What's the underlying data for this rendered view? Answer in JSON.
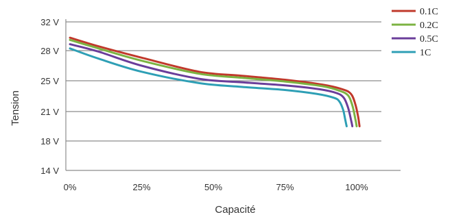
{
  "chart_data": {
    "type": "line",
    "title": "",
    "xlabel": "Capacité",
    "ylabel": "Tension",
    "x_ticks": [
      "0%",
      "25%",
      "50%",
      "75%",
      "100%"
    ],
    "y_ticks": [
      "14 V",
      "18 V",
      "21 V",
      "25 V",
      "28 V",
      "32 V"
    ],
    "y_tick_values": [
      14,
      18,
      21,
      25,
      28,
      32
    ],
    "xlim": [
      0,
      115
    ],
    "ylim": [
      14,
      32
    ],
    "grid": true,
    "legend_position": "top-right",
    "series": [
      {
        "name": "0.1C",
        "color": "#c0392b",
        "x": [
          0,
          10,
          25,
          45,
          60,
          75,
          88,
          95,
          98,
          99.5,
          100.5,
          101
        ],
        "y": [
          29.8,
          28.6,
          27.3,
          25.9,
          25.5,
          25.1,
          24.5,
          23.9,
          23.3,
          22.0,
          20.5,
          19.5
        ]
      },
      {
        "name": "0.2C",
        "color": "#7cb342",
        "x": [
          0,
          10,
          25,
          45,
          60,
          75,
          88,
          94,
          97,
          98.5,
          99.5,
          100
        ],
        "y": [
          29.5,
          28.3,
          27.0,
          25.7,
          25.3,
          24.9,
          24.3,
          23.7,
          23.1,
          21.8,
          20.3,
          19.5
        ]
      },
      {
        "name": "0.5C",
        "color": "#6a3d9a",
        "x": [
          0,
          10,
          25,
          45,
          60,
          75,
          87,
          93,
          95.5,
          97,
          98,
          98.5
        ],
        "y": [
          28.9,
          27.9,
          26.5,
          25.2,
          24.8,
          24.4,
          23.9,
          23.4,
          22.8,
          21.5,
          20.2,
          19.5
        ]
      },
      {
        "name": "1C",
        "color": "#2e9fb5",
        "x": [
          0,
          10,
          25,
          45,
          60,
          75,
          86,
          92,
          94,
          95.3,
          96,
          96.5
        ],
        "y": [
          28.3,
          27.2,
          25.9,
          24.7,
          24.2,
          23.8,
          23.3,
          22.8,
          22.3,
          21.2,
          20.2,
          19.5
        ]
      }
    ]
  }
}
